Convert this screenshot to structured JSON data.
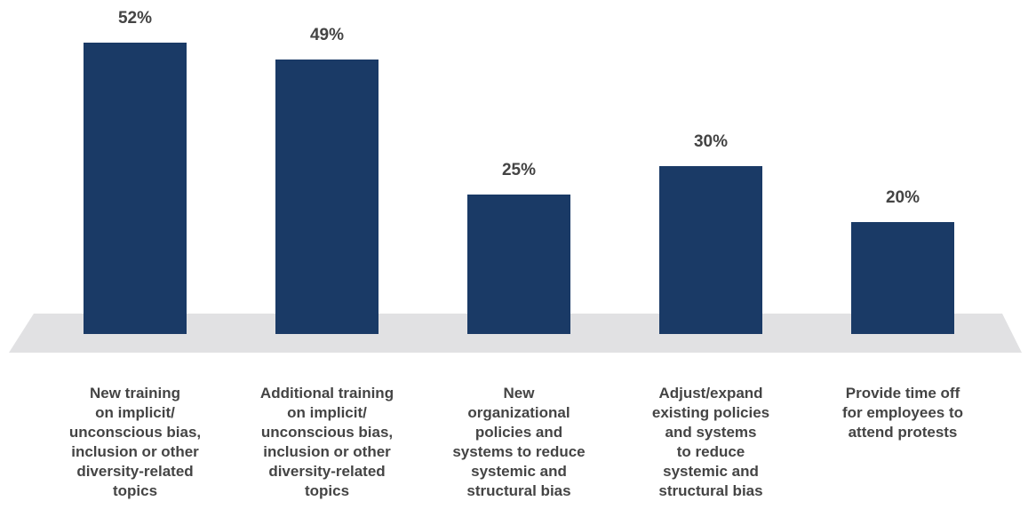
{
  "chart_data": {
    "type": "bar",
    "categories": [
      "New training\non implicit/\nunconscious bias,\ninclusion or other\ndiversity-related\ntopics",
      "Additional training\non implicit/\nunconscious bias,\ninclusion or other\ndiversity-related\ntopics",
      "New\norganizational\npolicies and\nsystems to reduce\nsystemic and\nstructural bias",
      "Adjust/expand\nexisting policies\nand systems\nto reduce\nsystemic and\nstructural bias",
      "Provide time off\nfor employees to\nattend protests"
    ],
    "values": [
      52,
      49,
      25,
      30,
      20
    ],
    "value_labels": [
      "52%",
      "49%",
      "25%",
      "30%",
      "20%"
    ],
    "color": "#1a3a66"
  }
}
